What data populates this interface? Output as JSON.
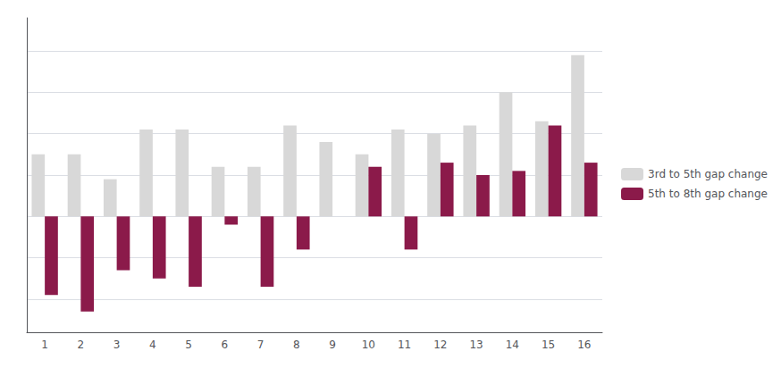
{
  "chart_data": {
    "type": "bar",
    "categories": [
      1,
      2,
      3,
      4,
      5,
      6,
      7,
      8,
      9,
      10,
      11,
      12,
      13,
      14,
      15,
      16
    ],
    "series": [
      {
        "name": "3rd to 5th gap change",
        "color": "#d8d8d8",
        "values": [
          0.075,
          0.075,
          0.045,
          0.105,
          0.105,
          0.06,
          0.06,
          0.11,
          0.09,
          0.075,
          0.105,
          0.1,
          0.11,
          0.15,
          0.115,
          0.195
        ]
      },
      {
        "name": "5th to 8th gap change",
        "color": "#8b1a4a",
        "values": [
          -0.095,
          -0.115,
          -0.065,
          -0.075,
          -0.085,
          -0.01,
          -0.085,
          -0.04,
          0.0,
          0.06,
          -0.04,
          0.065,
          0.05,
          0.055,
          0.11,
          0.065
        ]
      }
    ],
    "ylim": [
      -0.14,
      0.24
    ],
    "yticks": [
      -0.1,
      -0.05,
      0.0,
      0.05,
      0.1,
      0.15,
      0.2
    ],
    "grid": true,
    "legend": "right",
    "tick_labels": "x"
  }
}
